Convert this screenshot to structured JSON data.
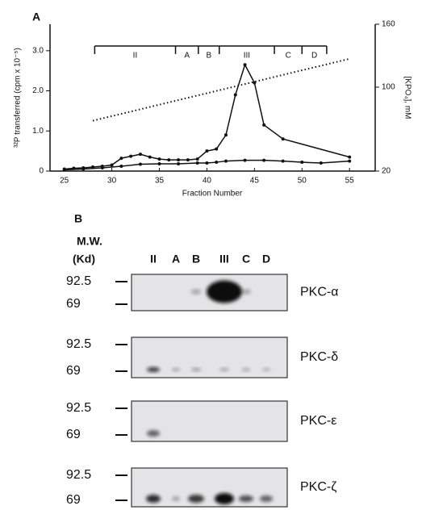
{
  "chart_data": {
    "type": "line",
    "panel_label": "A",
    "x_label": "Fraction Number",
    "y_label": "³²P transferred (cpm x 10⁻⁵)",
    "y2_label": "[KPO₄], mM",
    "xlim": [
      23.5,
      57.7
    ],
    "xticks": [
      25,
      30,
      35,
      40,
      45,
      50,
      55
    ],
    "ylim": [
      0,
      3.66
    ],
    "yticks": [
      0,
      {
        "value": 1,
        "label": "1.0"
      },
      {
        "value": 2,
        "label": "2.0"
      },
      {
        "value": 3,
        "label": "3.0"
      }
    ],
    "y2lim": [
      20,
      160
    ],
    "y2ticks": [
      20,
      100,
      160
    ],
    "series": [
      {
        "color": "#111111",
        "x": [
          25,
          26,
          27,
          28,
          29,
          30,
          31,
          32,
          33,
          34,
          35,
          36,
          37,
          38,
          39,
          40,
          41,
          42,
          43,
          44,
          45,
          46,
          48,
          55
        ],
        "values": [
          0.05,
          0.07,
          0.08,
          0.1,
          0.12,
          0.15,
          0.32,
          0.37,
          0.42,
          0.35,
          0.3,
          0.28,
          0.28,
          0.28,
          0.3,
          0.5,
          0.55,
          0.9,
          1.9,
          2.65,
          2.2,
          1.15,
          0.8,
          0.35
        ]
      },
      {
        "color": "#111111",
        "x": [
          25,
          27,
          29,
          31,
          33,
          35,
          37,
          39,
          40,
          41,
          42,
          44,
          46,
          48,
          50,
          52,
          55
        ],
        "values": [
          0.03,
          0.05,
          0.08,
          0.12,
          0.17,
          0.18,
          0.18,
          0.2,
          0.2,
          0.22,
          0.25,
          0.27,
          0.27,
          0.25,
          0.22,
          0.2,
          0.25
        ]
      },
      {
        "color": "#111111",
        "axis": "y2",
        "dashed": true,
        "x": [
          28,
          55
        ],
        "values": [
          68,
          127
        ]
      }
    ],
    "pools": [
      {
        "label": "II",
        "from": 28.2,
        "to": 36.7
      },
      {
        "label": "A",
        "from": 36.7,
        "to": 39.1
      },
      {
        "label": "B",
        "from": 39.1,
        "to": 41.3
      },
      {
        "label": "III",
        "from": 41.3,
        "to": 47.1
      },
      {
        "label": "C",
        "from": 47.1,
        "to": 50
      },
      {
        "label": "D",
        "from": 50,
        "to": 52.6
      }
    ]
  },
  "figure_b": {
    "panel_label": "B",
    "mw_header": [
      "M.W.",
      "(Kd)"
    ],
    "lanes": [
      "II",
      "A",
      "B",
      "III",
      "C",
      "D"
    ],
    "blots": [
      {
        "name": "PKC-α",
        "markers": [
          "92.5",
          "69"
        ]
      },
      {
        "name": "PKC-δ",
        "markers": [
          "92.5",
          "69"
        ]
      },
      {
        "name": "PKC-ε",
        "markers": [
          "92.5",
          "69"
        ]
      },
      {
        "name": "PKC-ζ",
        "markers": [
          "92.5",
          "69"
        ]
      }
    ]
  }
}
